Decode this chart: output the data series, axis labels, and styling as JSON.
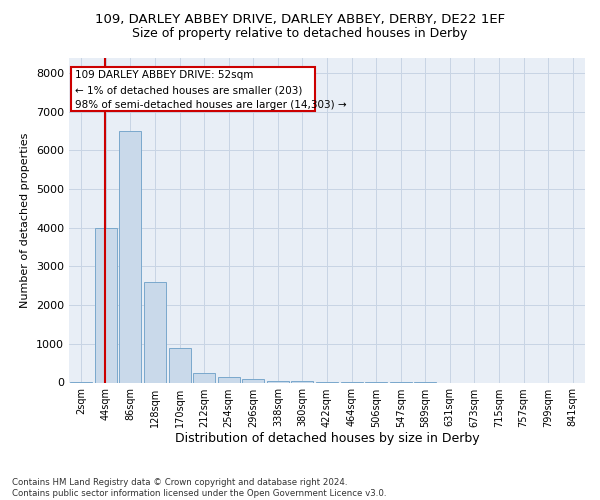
{
  "title_line1": "109, DARLEY ABBEY DRIVE, DARLEY ABBEY, DERBY, DE22 1EF",
  "title_line2": "Size of property relative to detached houses in Derby",
  "xlabel": "Distribution of detached houses by size in Derby",
  "ylabel": "Number of detached properties",
  "footnote": "Contains HM Land Registry data © Crown copyright and database right 2024.\nContains public sector information licensed under the Open Government Licence v3.0.",
  "bin_labels": [
    "2sqm",
    "44sqm",
    "86sqm",
    "128sqm",
    "170sqm",
    "212sqm",
    "254sqm",
    "296sqm",
    "338sqm",
    "380sqm",
    "422sqm",
    "464sqm",
    "506sqm",
    "547sqm",
    "589sqm",
    "631sqm",
    "673sqm",
    "715sqm",
    "757sqm",
    "799sqm",
    "841sqm"
  ],
  "bar_values": [
    25,
    4000,
    6500,
    2600,
    900,
    250,
    130,
    80,
    45,
    30,
    20,
    8,
    3,
    2,
    1,
    0,
    0,
    0,
    0,
    0,
    0
  ],
  "bar_color": "#c9d9ea",
  "bar_edge_color": "#7aa8cc",
  "ylim": [
    0,
    8400
  ],
  "yticks": [
    0,
    1000,
    2000,
    3000,
    4000,
    5000,
    6000,
    7000,
    8000
  ],
  "annotation_text_line1": "109 DARLEY ABBEY DRIVE: 52sqm",
  "annotation_text_line2": "← 1% of detached houses are smaller (203)",
  "annotation_text_line3": "98% of semi-detached houses are larger (14,303) →",
  "vline_x_idx": 0.97,
  "vline_color": "#cc0000",
  "grid_color": "#c8d4e4",
  "bg_color": "#e8eef6"
}
